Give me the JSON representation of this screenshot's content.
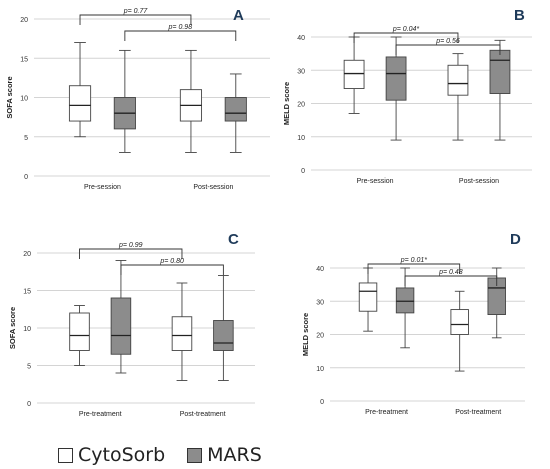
{
  "legend": {
    "items": [
      {
        "label": "CytoSorb",
        "color": "#ffffff"
      },
      {
        "label": "MARS",
        "color": "#8c8c8c"
      }
    ]
  },
  "chart_data": [
    {
      "panel": "A",
      "type": "boxplot",
      "ylabel": "SOFA score",
      "ylim": [
        0,
        20
      ],
      "yticks": [
        0,
        5,
        10,
        15,
        20
      ],
      "categories": [
        "Pre-session",
        "Post-session"
      ],
      "series": [
        {
          "name": "CytoSorb",
          "color": "#ffffff",
          "boxes": [
            {
              "min": 5,
              "q1": 7,
              "median": 9,
              "q3": 11.5,
              "max": 17
            },
            {
              "min": 3,
              "q1": 7,
              "median": 9,
              "q3": 11,
              "max": 16
            }
          ]
        },
        {
          "name": "MARS",
          "color": "#8c8c8c",
          "boxes": [
            {
              "min": 3,
              "q1": 6,
              "median": 8,
              "q3": 10,
              "max": 16
            },
            {
              "min": 3,
              "q1": 7,
              "median": 8,
              "q3": 10,
              "max": 13
            }
          ]
        }
      ],
      "comparisons": [
        {
          "text": "p= 0.77",
          "from": [
            "Pre-session",
            "CytoSorb"
          ],
          "to": [
            "Post-session",
            "CytoSorb"
          ]
        },
        {
          "text": "p= 0.98",
          "from": [
            "Pre-session",
            "MARS"
          ],
          "to": [
            "Post-session",
            "MARS"
          ]
        }
      ]
    },
    {
      "panel": "B",
      "type": "boxplot",
      "ylabel": "MELD score",
      "ylim": [
        0,
        40
      ],
      "yticks": [
        0,
        10,
        20,
        30,
        40
      ],
      "categories": [
        "Pre-session",
        "Post-session"
      ],
      "series": [
        {
          "name": "CytoSorb",
          "color": "#ffffff",
          "boxes": [
            {
              "min": 17,
              "q1": 24.5,
              "median": 29,
              "q3": 33,
              "max": 40
            },
            {
              "min": 9,
              "q1": 22.5,
              "median": 26,
              "q3": 31.5,
              "max": 35
            }
          ]
        },
        {
          "name": "MARS",
          "color": "#8c8c8c",
          "boxes": [
            {
              "min": 9,
              "q1": 21,
              "median": 29,
              "q3": 34,
              "max": 40
            },
            {
              "min": 9,
              "q1": 23,
              "median": 33,
              "q3": 36,
              "max": 39
            }
          ]
        }
      ],
      "comparisons": [
        {
          "text": "p= 0.04*",
          "from": [
            "Pre-session",
            "CytoSorb"
          ],
          "to": [
            "Post-session",
            "CytoSorb"
          ]
        },
        {
          "text": "p= 0.56",
          "from": [
            "Pre-session",
            "MARS"
          ],
          "to": [
            "Post-session",
            "MARS"
          ]
        }
      ]
    },
    {
      "panel": "C",
      "type": "boxplot",
      "ylabel": "SOFA score",
      "ylim": [
        0,
        20
      ],
      "yticks": [
        0,
        5,
        10,
        15,
        20
      ],
      "categories": [
        "Pre-treatment",
        "Post-treatment"
      ],
      "series": [
        {
          "name": "CytoSorb",
          "color": "#ffffff",
          "boxes": [
            {
              "min": 5,
              "q1": 7,
              "median": 9,
              "q3": 12,
              "max": 13
            },
            {
              "min": 3,
              "q1": 7,
              "median": 9,
              "q3": 11.5,
              "max": 16
            }
          ]
        },
        {
          "name": "MARS",
          "color": "#8c8c8c",
          "boxes": [
            {
              "min": 4,
              "q1": 6.5,
              "median": 9,
              "q3": 14,
              "max": 19
            },
            {
              "min": 3,
              "q1": 7,
              "median": 8,
              "q3": 11,
              "max": 17
            }
          ]
        }
      ],
      "comparisons": [
        {
          "text": "p= 0.99",
          "from": [
            "Pre-treatment",
            "CytoSorb"
          ],
          "to": [
            "Post-treatment",
            "CytoSorb"
          ]
        },
        {
          "text": "p= 0.80",
          "from": [
            "Pre-treatment",
            "MARS"
          ],
          "to": [
            "Post-treatment",
            "MARS"
          ]
        }
      ]
    },
    {
      "panel": "D",
      "type": "boxplot",
      "ylabel": "MELD score",
      "ylim": [
        0,
        40
      ],
      "yticks": [
        0,
        10,
        20,
        30,
        40
      ],
      "categories": [
        "Pre-treatment",
        "Post-treatment"
      ],
      "series": [
        {
          "name": "CytoSorb",
          "color": "#ffffff",
          "boxes": [
            {
              "min": 21,
              "q1": 27,
              "median": 33,
              "q3": 35.5,
              "max": 40
            },
            {
              "min": 9,
              "q1": 20,
              "median": 23,
              "q3": 27.5,
              "max": 33
            }
          ]
        },
        {
          "name": "MARS",
          "color": "#8c8c8c",
          "boxes": [
            {
              "min": 16,
              "q1": 26.5,
              "median": 30,
              "q3": 34,
              "max": 40
            },
            {
              "min": 19,
              "q1": 26,
              "median": 34,
              "q3": 37,
              "max": 40
            }
          ]
        }
      ],
      "comparisons": [
        {
          "text": "p= 0.01*",
          "from": [
            "Pre-treatment",
            "CytoSorb"
          ],
          "to": [
            "Post-treatment",
            "CytoSorb"
          ]
        },
        {
          "text": "p= 0.48",
          "from": [
            "Pre-treatment",
            "MARS"
          ],
          "to": [
            "Post-treatment",
            "MARS"
          ]
        }
      ]
    }
  ]
}
